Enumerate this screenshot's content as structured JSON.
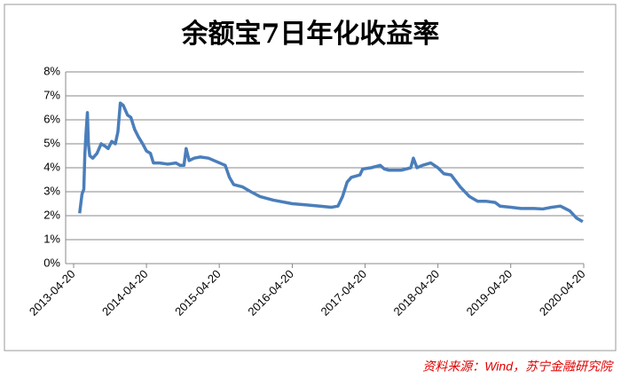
{
  "chart_data": {
    "type": "line",
    "title": "余额宝7日年化收益率",
    "source": "资料来源：Wind，苏宁金融研究院",
    "x": [
      "2013-05-20",
      "2013-06-01",
      "2013-06-10",
      "2013-06-15",
      "2013-06-20",
      "2013-06-28",
      "2013-07-03",
      "2013-07-10",
      "2013-07-25",
      "2013-08-15",
      "2013-09-05",
      "2013-09-25",
      "2013-10-10",
      "2013-10-28",
      "2013-11-15",
      "2013-11-28",
      "2013-12-10",
      "2013-12-25",
      "2014-01-15",
      "2014-02-01",
      "2014-02-20",
      "2014-03-10",
      "2014-04-01",
      "2014-04-20",
      "2014-05-10",
      "2014-05-25",
      "2014-06-25",
      "2014-08-05",
      "2014-09-15",
      "2014-10-05",
      "2014-10-25",
      "2014-11-05",
      "2014-11-20",
      "2014-12-15",
      "2015-01-15",
      "2015-02-25",
      "2015-05-20",
      "2015-06-10",
      "2015-07-01",
      "2015-08-15",
      "2015-09-25",
      "2015-11-10",
      "2016-01-15",
      "2016-04-20",
      "2016-07-01",
      "2016-09-05",
      "2016-11-01",
      "2016-12-05",
      "2016-12-28",
      "2017-01-20",
      "2017-02-10",
      "2017-03-25",
      "2017-04-08",
      "2017-05-20",
      "2017-07-05",
      "2017-07-25",
      "2017-08-15",
      "2017-10-20",
      "2017-12-05",
      "2017-12-18",
      "2018-01-05",
      "2018-02-01",
      "2018-03-15",
      "2018-04-20",
      "2018-05-20",
      "2018-06-25",
      "2018-08-10",
      "2018-09-25",
      "2018-11-05",
      "2018-12-20",
      "2019-02-01",
      "2019-02-25",
      "2019-04-20",
      "2019-06-10",
      "2019-08-15",
      "2019-09-28",
      "2019-11-10",
      "2019-12-25",
      "2020-02-10",
      "2020-03-15",
      "2020-04-15"
    ],
    "series": [
      {
        "name": "余额宝7日年化收益率",
        "color": "#4a7ebb",
        "values": [
          2.1,
          2.9,
          3.1,
          4.5,
          5.3,
          6.3,
          5.0,
          4.5,
          4.4,
          4.6,
          5.0,
          4.9,
          4.8,
          5.1,
          5.0,
          5.5,
          6.7,
          6.6,
          6.2,
          6.1,
          5.6,
          5.3,
          5.0,
          4.7,
          4.6,
          4.2,
          4.2,
          4.15,
          4.2,
          4.1,
          4.1,
          4.8,
          4.3,
          4.4,
          4.45,
          4.4,
          4.1,
          3.6,
          3.3,
          3.2,
          3.0,
          2.8,
          2.65,
          2.5,
          2.45,
          2.4,
          2.35,
          2.4,
          2.8,
          3.4,
          3.6,
          3.7,
          3.95,
          4.0,
          4.1,
          3.95,
          3.9,
          3.9,
          4.0,
          4.4,
          4.0,
          4.1,
          4.2,
          4.0,
          3.75,
          3.7,
          3.2,
          2.8,
          2.6,
          2.6,
          2.55,
          2.4,
          2.35,
          2.3,
          2.3,
          2.28,
          2.35,
          2.4,
          2.2,
          1.9,
          1.75
        ]
      }
    ],
    "xlim": [
      "2013-04-20",
      "2020-04-20"
    ],
    "xticks": [
      "2013-04-20",
      "2014-04-20",
      "2015-04-20",
      "2016-04-20",
      "2017-04-20",
      "2018-04-20",
      "2019-04-20",
      "2020-04-20"
    ],
    "ylim": [
      0,
      8
    ],
    "yticks": [
      {
        "value": 0,
        "label": "0%"
      },
      {
        "value": 1,
        "label": "1%"
      },
      {
        "value": 2,
        "label": "2%"
      },
      {
        "value": 3,
        "label": "3%"
      },
      {
        "value": 4,
        "label": "4%"
      },
      {
        "value": 5,
        "label": "5%"
      },
      {
        "value": 6,
        "label": "6%"
      },
      {
        "value": 7,
        "label": "7%"
      },
      {
        "value": 8,
        "label": "8%"
      }
    ],
    "grid": true
  }
}
